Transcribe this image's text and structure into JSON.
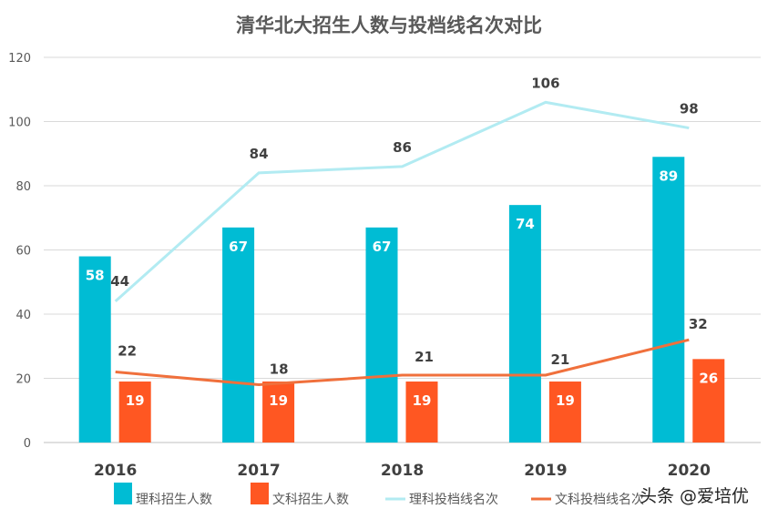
{
  "chart_data": {
    "type": "bar+line",
    "title": "清华北大招生人数与投档线名次对比",
    "categories": [
      "2016",
      "2017",
      "2018",
      "2019",
      "2020"
    ],
    "ylim": [
      0,
      120
    ],
    "yticks": [
      0,
      20,
      40,
      60,
      80,
      100,
      120
    ],
    "grid": true,
    "legend_position": "bottom",
    "series": [
      {
        "name": "理科招生人数",
        "type": "bar",
        "color": "#00BCD4",
        "values": [
          58,
          67,
          67,
          74,
          89
        ]
      },
      {
        "name": "文科招生人数",
        "type": "bar",
        "color": "#FF5722",
        "values": [
          19,
          19,
          19,
          19,
          26
        ]
      },
      {
        "name": "理科投档线名次",
        "type": "line",
        "color": "#B2EBF2",
        "values": [
          44,
          84,
          86,
          106,
          98
        ]
      },
      {
        "name": "文科投档线名次",
        "type": "line",
        "color": "#F0703C",
        "values": [
          22,
          18,
          21,
          21,
          32
        ]
      }
    ]
  },
  "watermark": "头条 @爱培优"
}
